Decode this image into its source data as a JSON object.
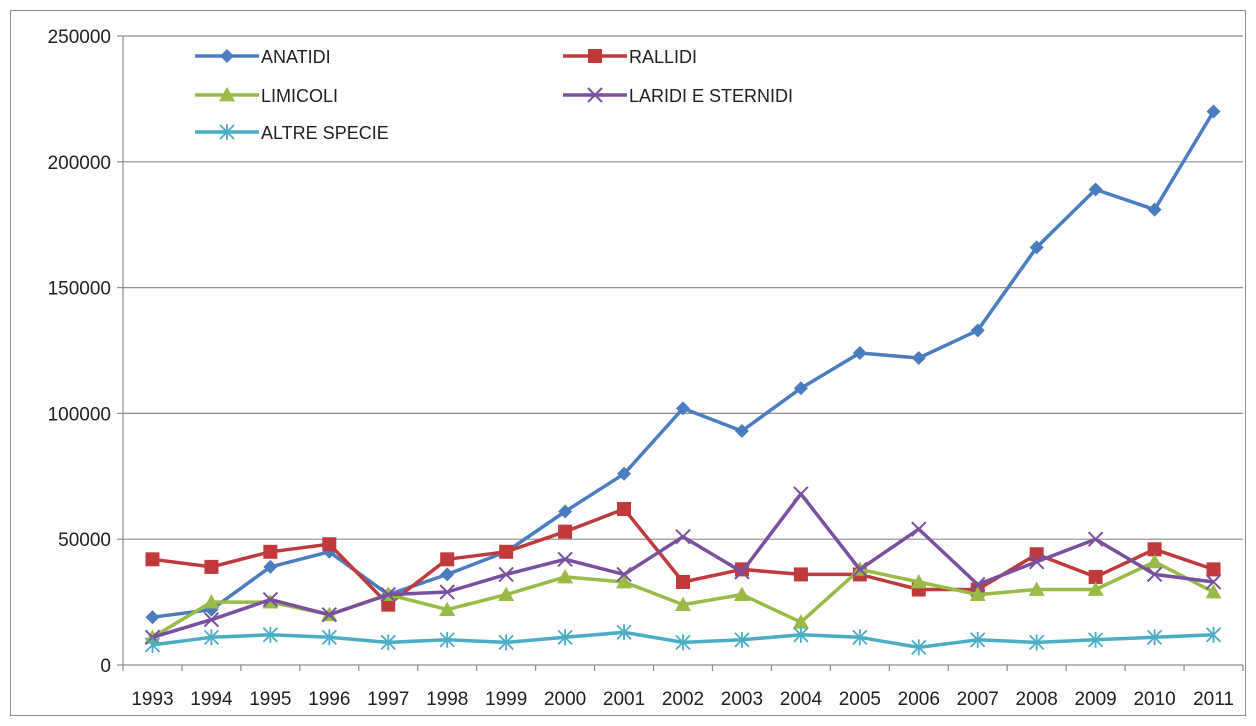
{
  "chart_data": {
    "type": "line",
    "title": "",
    "xlabel": "",
    "ylabel": "",
    "ylim": [
      0,
      250000
    ],
    "yticks": [
      "0",
      "50000",
      "100000",
      "150000",
      "200000",
      "250000"
    ],
    "grid": "horizontal major",
    "legend_position": "top-left, inside plot",
    "categories": [
      "1993",
      "1994",
      "1995",
      "1996",
      "1997",
      "1998",
      "1999",
      "2000",
      "2001",
      "2002",
      "2003",
      "2004",
      "2005",
      "2006",
      "2007",
      "2008",
      "2009",
      "2010",
      "2011"
    ],
    "series": [
      {
        "name": "ANATIDI",
        "color": "#4a7dc0",
        "marker": "diamond",
        "values": [
          19000,
          22000,
          39000,
          45000,
          28000,
          36000,
          45000,
          61000,
          76000,
          102000,
          93000,
          110000,
          124000,
          122000,
          133000,
          166000,
          189000,
          181000,
          220000
        ]
      },
      {
        "name": "RALLIDI",
        "color": "#c0393b",
        "marker": "square",
        "values": [
          42000,
          39000,
          45000,
          48000,
          24000,
          42000,
          45000,
          53000,
          62000,
          33000,
          38000,
          36000,
          36000,
          30000,
          30000,
          44000,
          35000,
          46000,
          38000
        ]
      },
      {
        "name": "LIMICOLI",
        "color": "#98bb45",
        "marker": "triangle",
        "values": [
          11000,
          25000,
          25000,
          20000,
          28000,
          22000,
          28000,
          35000,
          33000,
          24000,
          28000,
          17000,
          38000,
          33000,
          28000,
          30000,
          30000,
          41000,
          29000
        ]
      },
      {
        "name": "LARIDI E STERNIDI",
        "color": "#7b4f9f",
        "marker": "x",
        "values": [
          11000,
          18000,
          26000,
          20000,
          28000,
          29000,
          36000,
          42000,
          36000,
          51000,
          37000,
          68000,
          38000,
          54000,
          32000,
          41000,
          50000,
          36000,
          33000
        ]
      },
      {
        "name": "ALTRE SPECIE",
        "color": "#4bacc6",
        "marker": "asterisk",
        "values": [
          8000,
          11000,
          12000,
          11000,
          9000,
          10000,
          9000,
          11000,
          13000,
          9000,
          10000,
          12000,
          11000,
          7000,
          10000,
          9000,
          10000,
          11000,
          12000
        ]
      }
    ]
  }
}
